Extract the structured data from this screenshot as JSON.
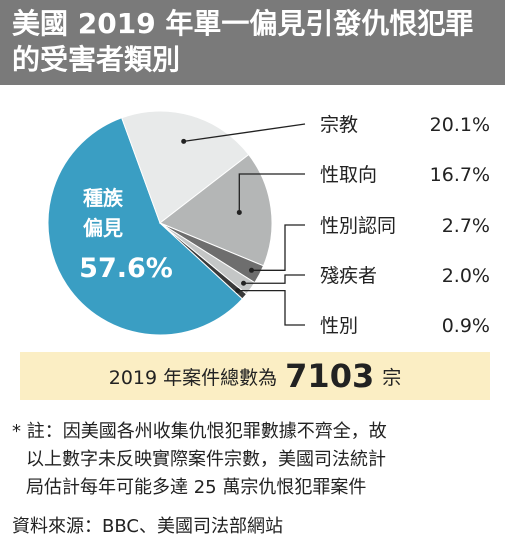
{
  "header": {
    "title_line1": "美國 2019 年單一偏見引發仇恨犯罪",
    "title_line2": "的受害者類別"
  },
  "chart_data": {
    "type": "pie",
    "categories": [
      "種族偏見",
      "宗教",
      "性取向",
      "性別認同",
      "殘疾者",
      "性別"
    ],
    "values": [
      57.6,
      20.1,
      16.7,
      2.7,
      2.0,
      0.9
    ],
    "value_labels": [
      "57.6%",
      "20.1%",
      "16.7%",
      "2.7%",
      "2.0%",
      "0.9%"
    ],
    "inside_label": {
      "line1": "種族",
      "line2": "偏見",
      "value": "57.6%"
    },
    "colors": [
      "#3a9ec3",
      "#e8eaea",
      "#b4b6b6",
      "#6e6e6e",
      "#c4c6c6",
      "#3a3a3a"
    ],
    "legend_placement": "right"
  },
  "total": {
    "prefix": "2019 年案件總數為",
    "value": "7103",
    "suffix": "宗"
  },
  "note": {
    "line1": "* 註：因美國各州收集仇恨犯罪數據不齊全，故",
    "line2": "以上數字未反映實際案件宗數，美國司法統計",
    "line3": "局估計每年可能多達 25 萬宗仇恨犯罪案件"
  },
  "source": "資料來源：BBC、美國司法部網站"
}
